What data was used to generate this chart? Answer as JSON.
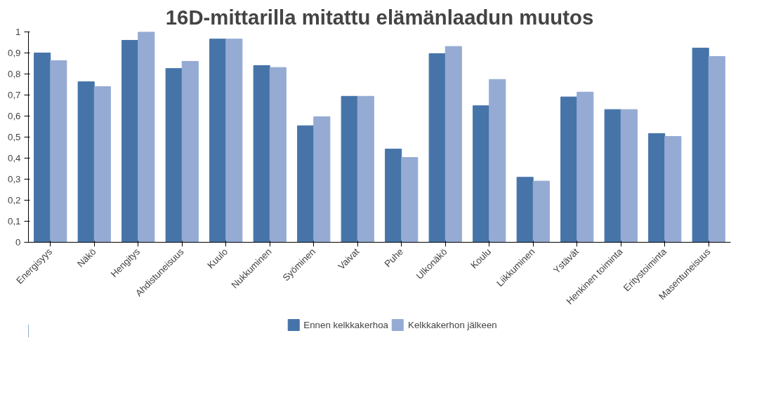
{
  "chart_data": {
    "type": "bar",
    "title": "16D-mittarilla mitattu elämänlaadun muutos",
    "categories": [
      "Energisyys",
      "Näkö",
      "Hengitys",
      "Ahdistuneisuus",
      "Kuulo",
      "Nukkuminen",
      "Syöminen",
      "Vaivat",
      "Puhe",
      "Ulkonäkö",
      "Koulu",
      "Liikkuminen",
      "Ystävät",
      "Henkinen toiminta",
      "Eritystoiminta",
      "Masentuneisuus"
    ],
    "series": [
      {
        "name": "Ennen kelkkakerhoa",
        "color": "#4674a8",
        "values": [
          0.9,
          0.763,
          0.96,
          0.826,
          0.966,
          0.84,
          0.554,
          0.694,
          0.443,
          0.897,
          0.649,
          0.309,
          0.691,
          0.631,
          0.517,
          0.923
        ]
      },
      {
        "name": "Kelkkakerhon jälkeen",
        "color": "#95abd3",
        "values": [
          0.863,
          0.74,
          1.0,
          0.86,
          0.966,
          0.831,
          0.597,
          0.694,
          0.403,
          0.931,
          0.774,
          0.291,
          0.714,
          0.631,
          0.503,
          0.883
        ]
      }
    ],
    "ylim": [
      0,
      1
    ],
    "yticks": [
      0,
      {
        "value": 0.1,
        "label": "0,1"
      },
      {
        "value": 0.2,
        "label": "0,2"
      },
      {
        "value": 0.3,
        "label": "0,3"
      },
      {
        "value": 0.4,
        "label": "0,4"
      },
      {
        "value": 0.5,
        "label": "0,5"
      },
      {
        "value": 0.6,
        "label": "0,6"
      },
      {
        "value": 0.7,
        "label": "0,7"
      },
      {
        "value": 0.8,
        "label": "0,8"
      },
      {
        "value": 0.9,
        "label": "0,9"
      },
      1
    ],
    "grid": false,
    "legend": "bottom"
  }
}
